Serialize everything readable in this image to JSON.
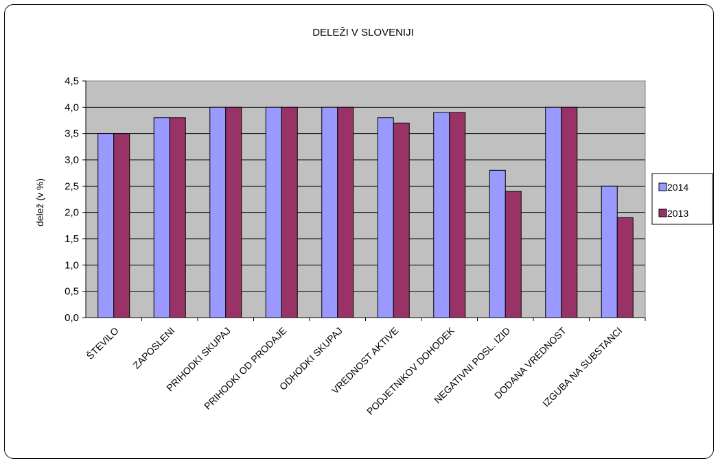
{
  "chart_data": {
    "type": "bar",
    "title": "DELEŽI V SLOVENIJI",
    "xlabel": "",
    "ylabel": "delež  (v %)",
    "categories": [
      "ŠTEVILO",
      "ZAPOSLENI",
      "PRIHODKI SKUPAJ",
      "PRIHODKI OD PRODAJE",
      "ODHODKI SKUPAJ",
      "VREDNOST AKTIVE",
      "PODJETNIKOV DOHODEK",
      "NEGATIVNI POSL. IZID",
      "DODANA VREDNOST",
      "IZGUBA NA SUBSTANCI"
    ],
    "series": [
      {
        "name": "2014",
        "color": "#9999ff",
        "values": [
          3.5,
          3.8,
          4.0,
          4.0,
          4.0,
          3.8,
          3.9,
          2.8,
          4.0,
          2.5
        ]
      },
      {
        "name": "2013",
        "color": "#993366",
        "values": [
          3.5,
          3.8,
          4.0,
          4.0,
          4.0,
          3.7,
          3.9,
          2.4,
          4.0,
          1.9
        ]
      }
    ],
    "ylim": [
      0,
      4.5
    ],
    "yticks": [
      "0,0",
      "0,5",
      "1,0",
      "1,5",
      "2,0",
      "2,5",
      "3,0",
      "3,5",
      "4,0",
      "4,5"
    ],
    "grid": true,
    "plot_background": "#c0c0c0",
    "legend_position": "right"
  }
}
